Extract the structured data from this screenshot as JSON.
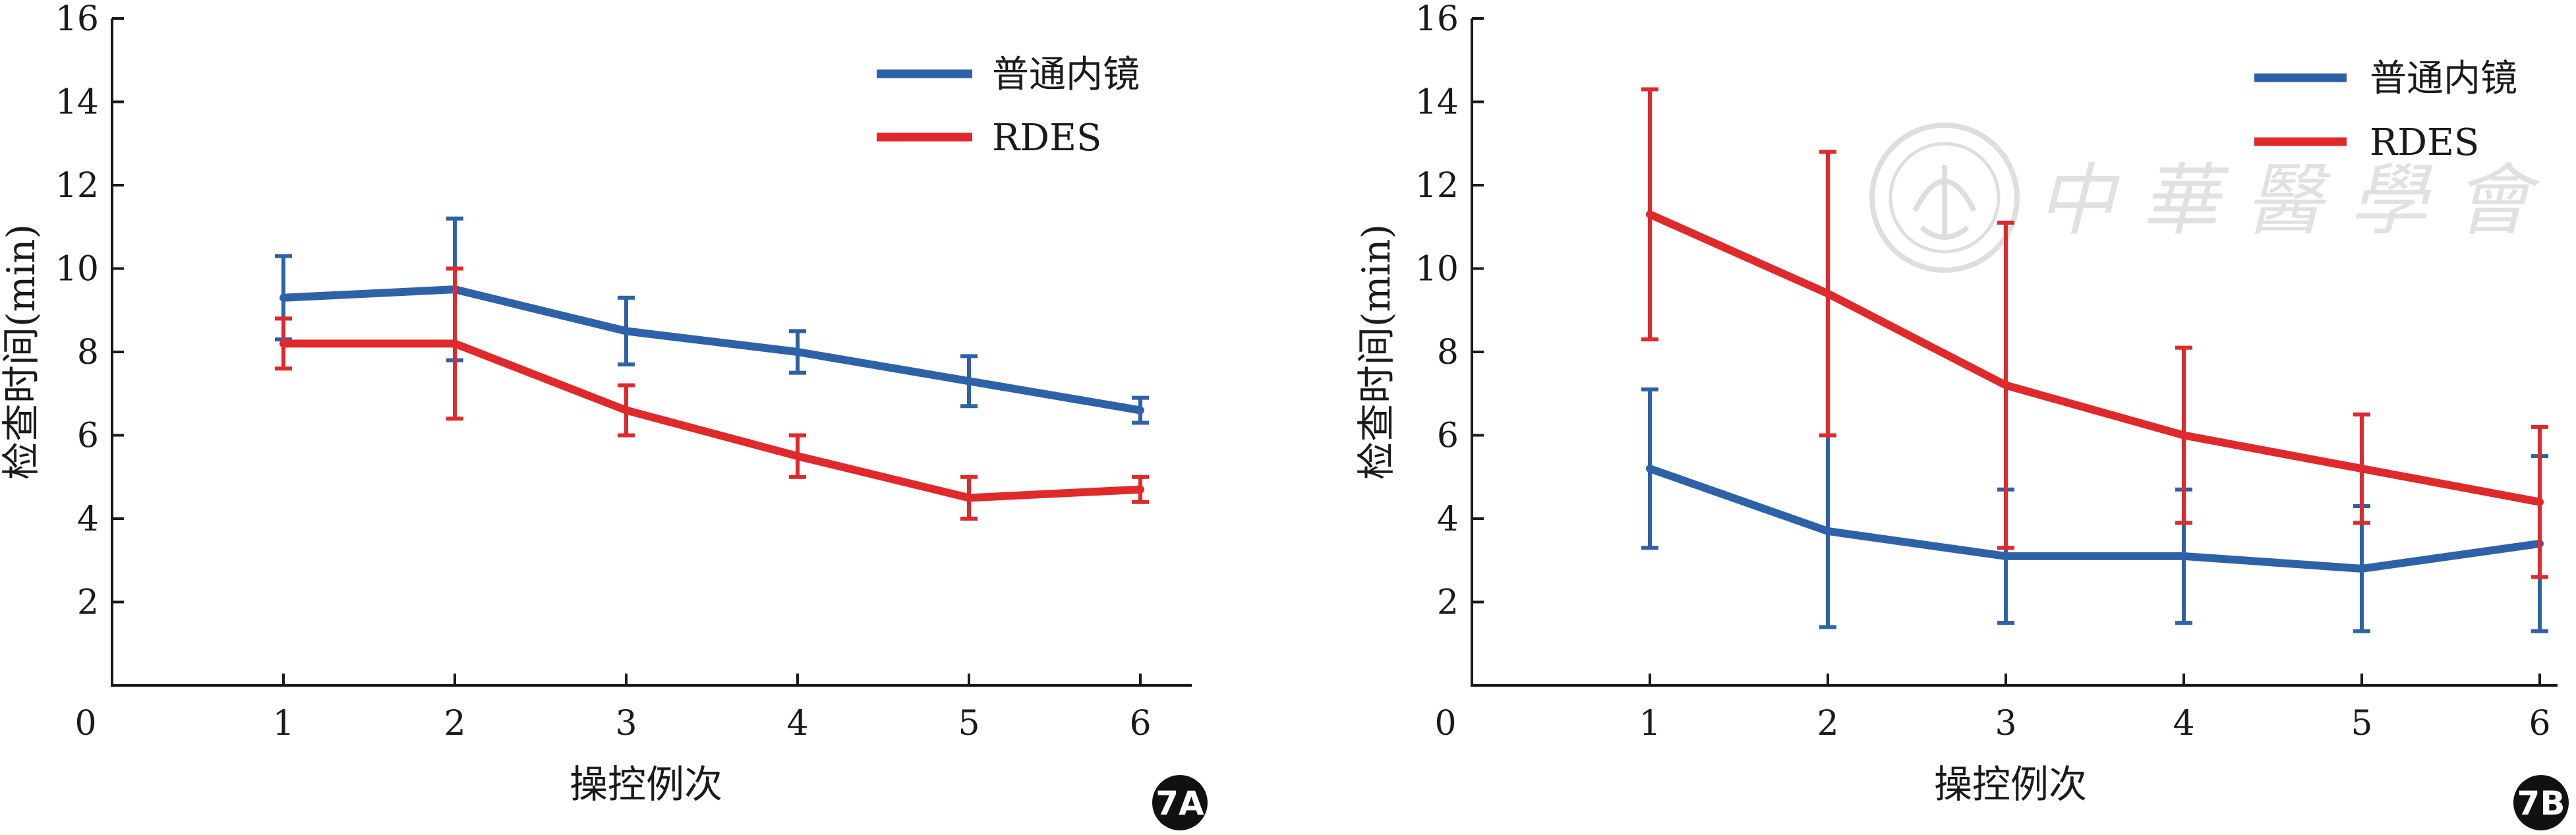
{
  "chart_data": [
    {
      "panel_label": "7A",
      "type": "line",
      "x": [
        1,
        2,
        3,
        4,
        5,
        6
      ],
      "x_ticks": [
        "0",
        "1",
        "2",
        "3",
        "4",
        "5",
        "6"
      ],
      "y_ticks": [
        "2",
        "4",
        "6",
        "8",
        "10",
        "12",
        "14",
        "16"
      ],
      "xlim": [
        0,
        6.3
      ],
      "ylim": [
        0,
        16
      ],
      "xlabel": "操控例次",
      "ylabel": "检查时间(min)",
      "legend_position": "top-right",
      "series": [
        {
          "name": "普通内镜",
          "color": "#2e62a8",
          "values": [
            9.3,
            9.5,
            8.5,
            8.0,
            7.3,
            6.6
          ],
          "error": [
            1.0,
            1.7,
            0.8,
            0.5,
            0.6,
            0.3
          ]
        },
        {
          "name": "RDES",
          "color": "#e0292b",
          "values": [
            8.2,
            8.2,
            6.6,
            5.5,
            4.5,
            4.7
          ],
          "error": [
            0.6,
            1.8,
            0.6,
            0.5,
            0.5,
            0.3
          ]
        }
      ]
    },
    {
      "panel_label": "7B",
      "type": "line",
      "x": [
        1,
        2,
        3,
        4,
        5,
        6
      ],
      "x_ticks": [
        "0",
        "1",
        "2",
        "3",
        "4",
        "5",
        "6"
      ],
      "y_ticks": [
        "2",
        "4",
        "6",
        "8",
        "10",
        "12",
        "14",
        "16"
      ],
      "xlim": [
        0,
        6.1
      ],
      "ylim": [
        0,
        16
      ],
      "xlabel": "操控例次",
      "ylabel": "检查时间(min)",
      "legend_position": "top-right",
      "series": [
        {
          "name": "普通内镜",
          "color": "#2e62a8",
          "values": [
            5.2,
            3.7,
            3.1,
            3.1,
            2.8,
            3.4
          ],
          "error": [
            1.9,
            2.3,
            1.6,
            1.6,
            1.5,
            2.1
          ]
        },
        {
          "name": "RDES",
          "color": "#e0292b",
          "values": [
            11.3,
            9.4,
            7.2,
            6.0,
            5.2,
            4.4
          ],
          "error": [
            3.0,
            3.4,
            3.9,
            2.1,
            1.3,
            1.8
          ]
        }
      ]
    }
  ],
  "watermark": {
    "text": "中華醫學會",
    "kind": "logo"
  }
}
